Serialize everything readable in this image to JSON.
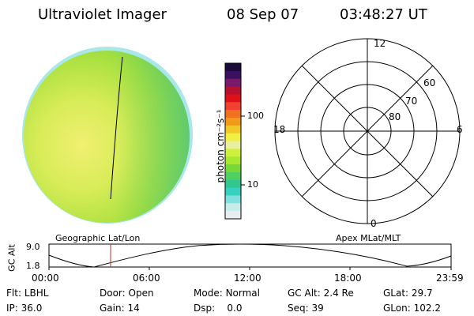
{
  "header": {
    "title": "Ultraviolet Imager",
    "date": "08 Sep 07",
    "time": "03:48:27 UT"
  },
  "colorbar": {
    "unit_label": "photon cm⁻²s⁻¹",
    "ticks": [
      "100",
      "10"
    ],
    "colors": [
      "#1a0a3a",
      "#3a1060",
      "#7a1a6a",
      "#b81030",
      "#e01018",
      "#f04030",
      "#f07020",
      "#f09a18",
      "#f0c828",
      "#f0f040",
      "#e8f0a0",
      "#d0f040",
      "#a8e830",
      "#78d838",
      "#50d060",
      "#30c890",
      "#38d0c0",
      "#80e0e0",
      "#c8ecec",
      "#e8eef0"
    ]
  },
  "polar_grid": {
    "mlt_labels": {
      "top": "12",
      "left": "18",
      "right": "6",
      "bottom": "0"
    },
    "lat_labels": [
      "60",
      "70",
      "80"
    ]
  },
  "timeline": {
    "ylabel": "GC Alt",
    "yticks": [
      "9.0",
      "1.8"
    ],
    "left_caption": "Geographic Lat/Lon",
    "right_caption": "Apex MLat/MLT",
    "xticks": [
      "00:00",
      "06:00",
      "12:00",
      "18:00",
      "23:59"
    ],
    "marker_time": "03:48"
  },
  "status": {
    "row1": [
      {
        "key": "Flt:",
        "val": "LBHL"
      },
      {
        "key": "Door:",
        "val": "Open"
      },
      {
        "key": "Mode:",
        "val": "Normal"
      },
      {
        "key": "GC Alt:",
        "val": "2.4 Re"
      },
      {
        "key": "GLat:",
        "val": "29.7"
      }
    ],
    "row2": [
      {
        "key": "IP:",
        "val": "36.0"
      },
      {
        "key": "Gain:",
        "val": "14"
      },
      {
        "key": "Dsp:",
        "val": "0.0"
      },
      {
        "key": "Seq:",
        "val": "39"
      },
      {
        "key": "GLon:",
        "val": "102.2"
      }
    ]
  }
}
